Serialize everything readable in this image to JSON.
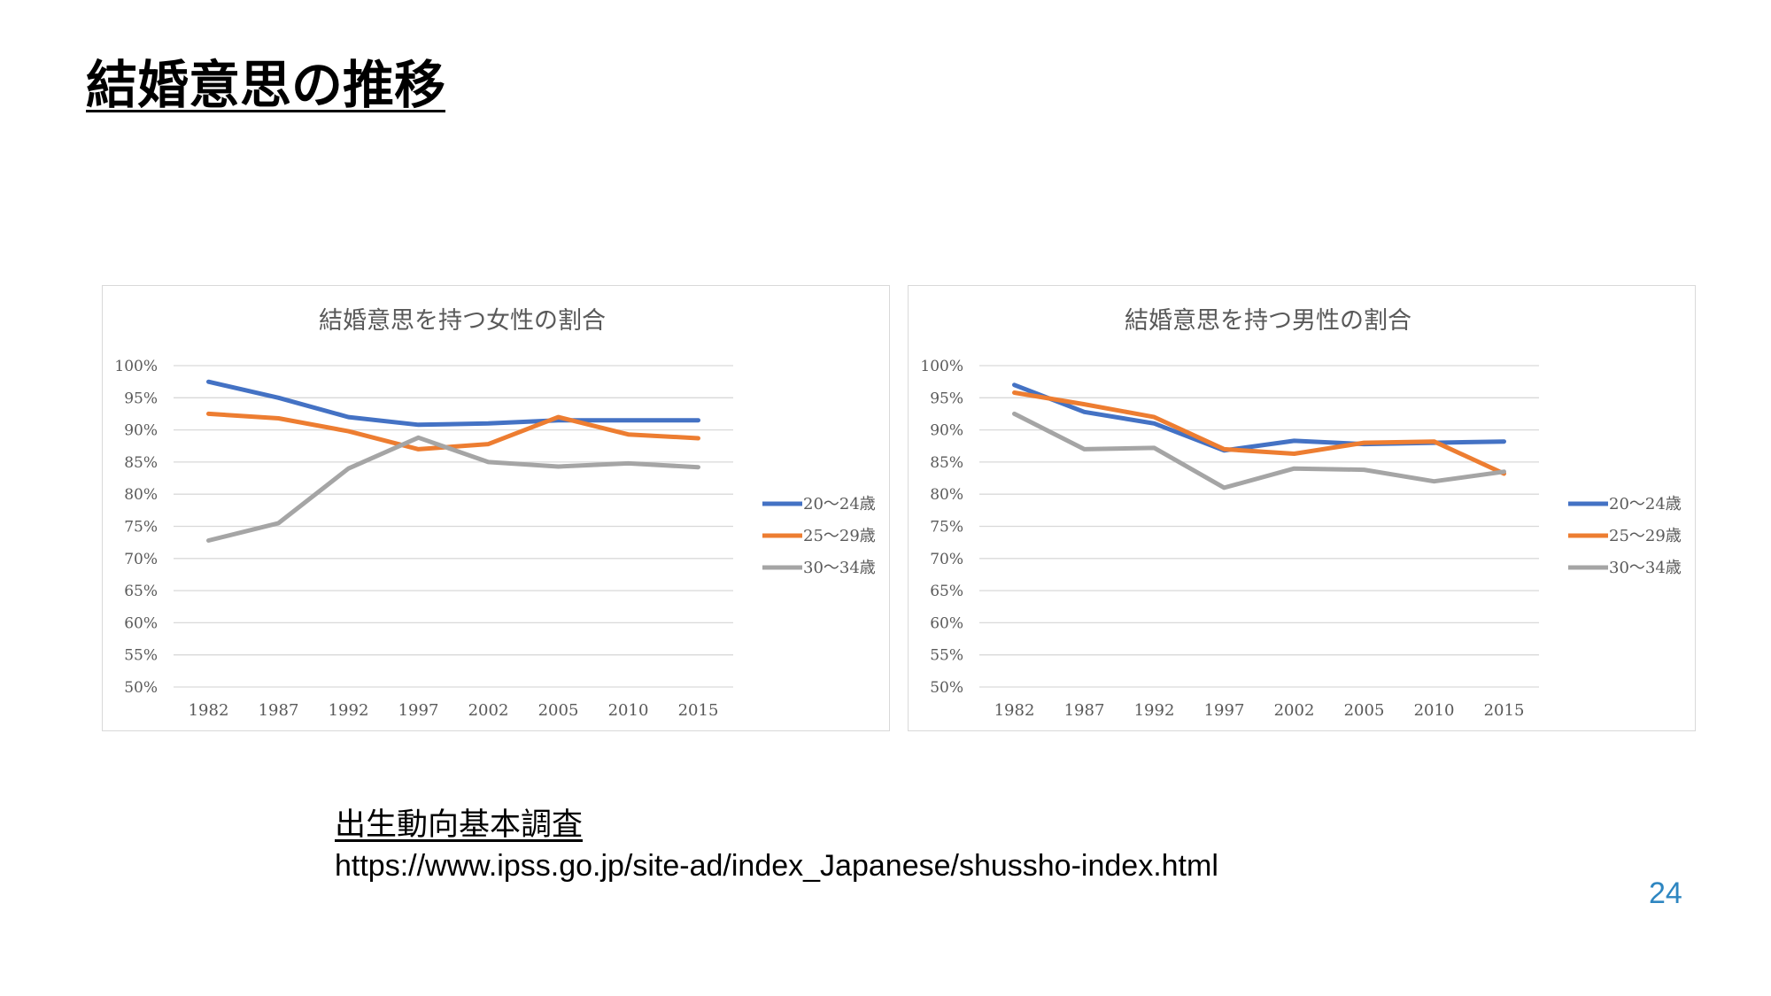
{
  "slide": {
    "title": "結婚意思の推移",
    "source_title": "出生動向基本調査",
    "source_url": "https://www.ipss.go.jp/site-ad/index_Japanese/shussho-index.html",
    "page_number": "24"
  },
  "chart_data": [
    {
      "type": "line",
      "title": "結婚意思を持つ女性の割合",
      "categories": [
        "1982",
        "1987",
        "1992",
        "1997",
        "2002",
        "2005",
        "2010",
        "2015"
      ],
      "ylim": [
        50,
        100
      ],
      "yticks": [
        "100%",
        "95%",
        "90%",
        "85%",
        "80%",
        "75%",
        "70%",
        "65%",
        "60%",
        "55%",
        "50%"
      ],
      "grid": true,
      "legend_position": "right",
      "series": [
        {
          "name": "20～24歳",
          "color": "#4472c4",
          "values": [
            97.5,
            95.0,
            92.0,
            90.8,
            91.0,
            91.5,
            91.5,
            91.5
          ]
        },
        {
          "name": "25～29歳",
          "color": "#ed7d31",
          "values": [
            92.5,
            91.8,
            89.8,
            87.0,
            87.8,
            92.0,
            89.3,
            88.7
          ]
        },
        {
          "name": "30～34歳",
          "color": "#a5a5a5",
          "values": [
            72.8,
            75.5,
            84.0,
            88.8,
            85.0,
            84.3,
            84.8,
            84.2
          ]
        }
      ]
    },
    {
      "type": "line",
      "title": "結婚意思を持つ男性の割合",
      "categories": [
        "1982",
        "1987",
        "1992",
        "1997",
        "2002",
        "2005",
        "2010",
        "2015"
      ],
      "ylim": [
        50,
        100
      ],
      "yticks": [
        "100%",
        "95%",
        "90%",
        "85%",
        "80%",
        "75%",
        "70%",
        "65%",
        "60%",
        "55%",
        "50%"
      ],
      "grid": true,
      "legend_position": "right",
      "series": [
        {
          "name": "20～24歳",
          "color": "#4472c4",
          "values": [
            97.0,
            92.8,
            91.0,
            86.8,
            88.3,
            87.8,
            88.0,
            88.2
          ]
        },
        {
          "name": "25～29歳",
          "color": "#ed7d31",
          "values": [
            95.8,
            94.0,
            92.0,
            87.0,
            86.3,
            88.0,
            88.2,
            83.2
          ]
        },
        {
          "name": "30～34歳",
          "color": "#a5a5a5",
          "values": [
            92.5,
            87.0,
            87.2,
            81.0,
            84.0,
            83.8,
            82.0,
            83.5
          ]
        }
      ]
    }
  ]
}
